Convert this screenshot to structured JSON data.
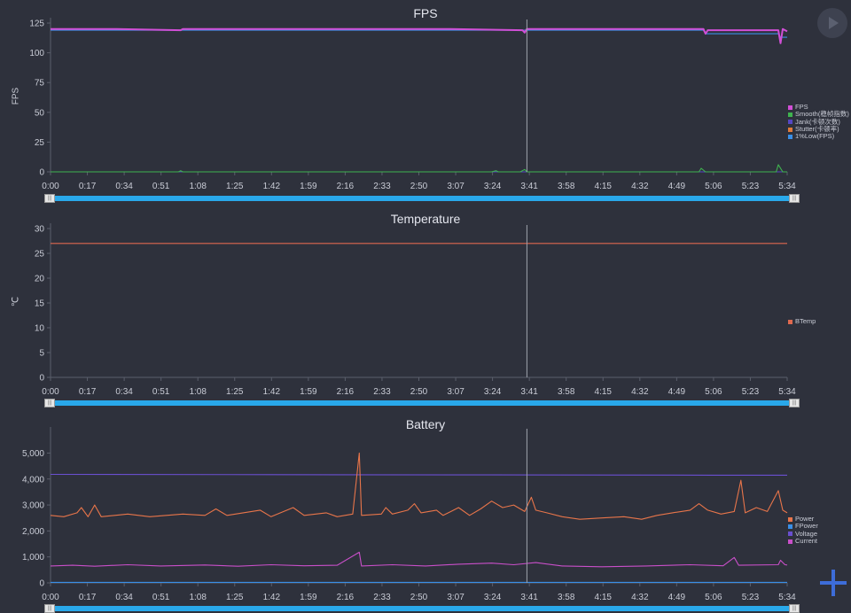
{
  "time_labels": [
    "0:00",
    "0:17",
    "0:34",
    "0:51",
    "1:08",
    "1:25",
    "1:42",
    "1:59",
    "2:16",
    "2:33",
    "2:50",
    "3:07",
    "3:24",
    "3:41",
    "3:58",
    "4:15",
    "4:32",
    "4:49",
    "5:06",
    "5:23",
    "5:34"
  ],
  "cursor_time": 216,
  "controls": {
    "play_icon": "play-icon",
    "add_icon": "plus-icon"
  },
  "chart_data": [
    {
      "type": "line",
      "title": "FPS",
      "ylabel": "FPS",
      "xlabel": "",
      "xlim": [
        0,
        334
      ],
      "ylim": [
        0,
        125
      ],
      "yticks": [
        0,
        25,
        50,
        75,
        100,
        125
      ],
      "grid": false,
      "legend": "right",
      "series": [
        {
          "name": "FPS",
          "color": "#d14fd6",
          "points": [
            [
              0,
              120
            ],
            [
              30,
              120
            ],
            [
              59,
              119
            ],
            [
              60,
              120
            ],
            [
              120,
              120
            ],
            [
              180,
              120
            ],
            [
              214,
              119
            ],
            [
              215,
              117
            ],
            [
              216,
              120
            ],
            [
              280,
              120
            ],
            [
              296,
              120
            ],
            [
              297,
              116
            ],
            [
              298,
              119
            ],
            [
              330,
              119
            ],
            [
              331,
              108
            ],
            [
              332,
              120
            ],
            [
              334,
              118
            ]
          ]
        },
        {
          "name": "Smooth(稳帧指数)",
          "color": "#3fb34f",
          "points": [
            [
              0,
              0
            ],
            [
              58,
              0
            ],
            [
              59,
              1
            ],
            [
              60,
              0
            ],
            [
              200,
              0
            ],
            [
              202,
              1
            ],
            [
              203,
              0
            ],
            [
              213,
              0
            ],
            [
              215,
              2
            ],
            [
              216,
              0
            ],
            [
              294,
              0
            ],
            [
              295,
              3
            ],
            [
              297,
              0
            ],
            [
              329,
              0
            ],
            [
              330,
              6
            ],
            [
              332,
              0
            ],
            [
              334,
              0
            ]
          ]
        },
        {
          "name": "Jank(卡顿次数)",
          "color": "#5547c4",
          "points": [
            [
              0,
              0
            ],
            [
              334,
              0
            ]
          ]
        },
        {
          "name": "Stutter(卡顿率)",
          "color": "#e07a3a",
          "points": [
            [
              0,
              0
            ],
            [
              334,
              0
            ]
          ]
        },
        {
          "name": "1%Low(FPS)",
          "color": "#3a8fe6",
          "points": [
            [
              0,
              119
            ],
            [
              296,
              119
            ],
            [
              297,
              116
            ],
            [
              330,
              116
            ],
            [
              331,
              113
            ],
            [
              334,
              113
            ]
          ]
        }
      ]
    },
    {
      "type": "line",
      "title": "Temperature",
      "ylabel": "℃",
      "xlabel": "",
      "xlim": [
        0,
        334
      ],
      "ylim": [
        0,
        30
      ],
      "yticks": [
        0,
        5,
        10,
        15,
        20,
        25,
        30
      ],
      "grid": false,
      "legend": "right",
      "series": [
        {
          "name": "BTemp",
          "color": "#e0694f",
          "points": [
            [
              0,
              27
            ],
            [
              334,
              27
            ]
          ]
        }
      ]
    },
    {
      "type": "line",
      "title": "Battery",
      "ylabel": "",
      "xlabel": "",
      "xlim": [
        0,
        334
      ],
      "ylim": [
        0,
        5800
      ],
      "yticks": [
        0,
        1000,
        2000,
        3000,
        4000,
        5000
      ],
      "ytick_labels": [
        "0",
        "1,000",
        "2,000",
        "3,000",
        "4,000",
        "5,000"
      ],
      "grid": false,
      "legend": "right",
      "series": [
        {
          "name": "Power",
          "color": "#e8754a",
          "points": [
            [
              0,
              2600
            ],
            [
              6,
              2550
            ],
            [
              12,
              2700
            ],
            [
              14,
              2900
            ],
            [
              17,
              2550
            ],
            [
              20,
              3000
            ],
            [
              23,
              2550
            ],
            [
              35,
              2650
            ],
            [
              45,
              2550
            ],
            [
              60,
              2650
            ],
            [
              70,
              2600
            ],
            [
              75,
              2850
            ],
            [
              80,
              2600
            ],
            [
              95,
              2800
            ],
            [
              100,
              2550
            ],
            [
              110,
              2900
            ],
            [
              115,
              2600
            ],
            [
              125,
              2700
            ],
            [
              130,
              2550
            ],
            [
              137,
              2650
            ],
            [
              140,
              5000
            ],
            [
              141,
              2600
            ],
            [
              150,
              2650
            ],
            [
              152,
              2900
            ],
            [
              155,
              2650
            ],
            [
              162,
              2800
            ],
            [
              165,
              3050
            ],
            [
              168,
              2700
            ],
            [
              175,
              2800
            ],
            [
              178,
              2600
            ],
            [
              185,
              2900
            ],
            [
              190,
              2600
            ],
            [
              195,
              2850
            ],
            [
              200,
              3150
            ],
            [
              205,
              2900
            ],
            [
              210,
              3000
            ],
            [
              215,
              2750
            ],
            [
              218,
              3300
            ],
            [
              220,
              2800
            ],
            [
              225,
              2700
            ],
            [
              232,
              2550
            ],
            [
              240,
              2450
            ],
            [
              250,
              2500
            ],
            [
              260,
              2550
            ],
            [
              268,
              2450
            ],
            [
              275,
              2600
            ],
            [
              282,
              2700
            ],
            [
              290,
              2800
            ],
            [
              294,
              3050
            ],
            [
              298,
              2800
            ],
            [
              304,
              2650
            ],
            [
              310,
              2750
            ],
            [
              313,
              3950
            ],
            [
              315,
              2700
            ],
            [
              320,
              2900
            ],
            [
              325,
              2750
            ],
            [
              330,
              3550
            ],
            [
              332,
              2800
            ],
            [
              334,
              2700
            ]
          ]
        },
        {
          "name": "FPower",
          "color": "#3a8fe6",
          "points": [
            [
              0,
              20
            ],
            [
              334,
              20
            ]
          ]
        },
        {
          "name": "Voltage",
          "color": "#6a4fd0",
          "points": [
            [
              0,
              4180
            ],
            [
              100,
              4170
            ],
            [
              200,
              4160
            ],
            [
              300,
              4150
            ],
            [
              334,
              4150
            ]
          ]
        },
        {
          "name": "Current",
          "color": "#c94fc9",
          "points": [
            [
              0,
              650
            ],
            [
              10,
              680
            ],
            [
              20,
              640
            ],
            [
              35,
              700
            ],
            [
              50,
              650
            ],
            [
              70,
              690
            ],
            [
              85,
              640
            ],
            [
              100,
              700
            ],
            [
              115,
              660
            ],
            [
              130,
              680
            ],
            [
              140,
              1180
            ],
            [
              141,
              650
            ],
            [
              155,
              700
            ],
            [
              170,
              650
            ],
            [
              185,
              720
            ],
            [
              200,
              760
            ],
            [
              210,
              700
            ],
            [
              220,
              780
            ],
            [
              232,
              650
            ],
            [
              250,
              620
            ],
            [
              270,
              650
            ],
            [
              290,
              700
            ],
            [
              305,
              660
            ],
            [
              310,
              980
            ],
            [
              312,
              680
            ],
            [
              330,
              700
            ],
            [
              331,
              870
            ],
            [
              333,
              700
            ],
            [
              334,
              690
            ]
          ]
        }
      ]
    }
  ]
}
